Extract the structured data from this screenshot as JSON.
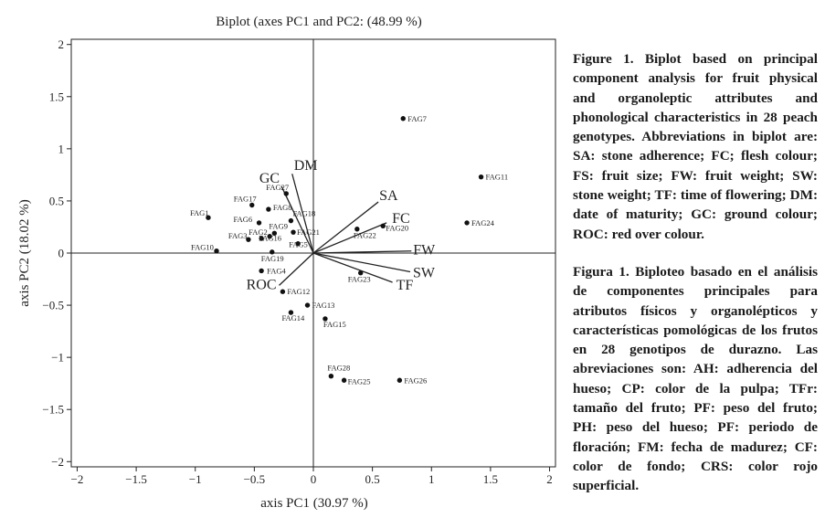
{
  "chart_data": {
    "type": "scatter",
    "title": "Biplot (axes PC1 and PC2: (48.99 %)",
    "xlabel": "axis PC1 (30.97 %)",
    "ylabel": "axis PC2 (18.02 %)",
    "xlim": [
      -2.05,
      2.05
    ],
    "ylim": [
      -2.05,
      2.05
    ],
    "xticks": [
      -2,
      -1.5,
      -1,
      -0.5,
      0,
      0.5,
      1,
      1.5,
      2
    ],
    "yticks": [
      -2,
      -1.5,
      -1,
      -0.5,
      0,
      0.5,
      1,
      1.5,
      2
    ],
    "xtick_labels": [
      "−2",
      "−1.5",
      "−1",
      "−0.5",
      "0",
      "0.5",
      "1",
      "1.5",
      "2"
    ],
    "ytick_labels": [
      "−2",
      "−1.5",
      "−1",
      "−0.5",
      "0",
      "0.5",
      "1",
      "1.5",
      "2"
    ],
    "grid": false,
    "points": [
      {
        "label": "FAG1",
        "x": -0.89,
        "y": 0.34
      },
      {
        "label": "FAG2",
        "x": -0.44,
        "y": 0.14
      },
      {
        "label": "FAG3",
        "x": -0.55,
        "y": 0.13
      },
      {
        "label": "FAG4",
        "x": -0.44,
        "y": -0.17
      },
      {
        "label": "FAG5",
        "x": -0.13,
        "y": 0.09
      },
      {
        "label": "FAG6",
        "x": -0.46,
        "y": 0.29
      },
      {
        "label": "FAG7",
        "x": 0.76,
        "y": 1.29
      },
      {
        "label": "FAG8",
        "x": -0.38,
        "y": 0.42
      },
      {
        "label": "FAG9",
        "x": -0.33,
        "y": 0.19
      },
      {
        "label": "FAG10",
        "x": -0.82,
        "y": 0.02
      },
      {
        "label": "FAG11",
        "x": 1.42,
        "y": 0.73
      },
      {
        "label": "FAG12",
        "x": -0.26,
        "y": -0.37
      },
      {
        "label": "FAG13",
        "x": -0.05,
        "y": -0.5
      },
      {
        "label": "FAG14",
        "x": -0.19,
        "y": -0.57
      },
      {
        "label": "FAG15",
        "x": 0.1,
        "y": -0.63
      },
      {
        "label": "FAG16",
        "x": -0.37,
        "y": 0.16
      },
      {
        "label": "FAG17",
        "x": -0.52,
        "y": 0.46
      },
      {
        "label": "FAG18",
        "x": -0.19,
        "y": 0.31
      },
      {
        "label": "FAG19",
        "x": -0.35,
        "y": 0.01
      },
      {
        "label": "FAG20",
        "x": 0.59,
        "y": 0.26
      },
      {
        "label": "FAG21",
        "x": -0.17,
        "y": 0.2
      },
      {
        "label": "FAG22",
        "x": 0.37,
        "y": 0.23
      },
      {
        "label": "FAG23",
        "x": 0.4,
        "y": -0.19
      },
      {
        "label": "FAG24",
        "x": 1.3,
        "y": 0.29
      },
      {
        "label": "FAG25",
        "x": 0.26,
        "y": -1.22
      },
      {
        "label": "FAG26",
        "x": 0.73,
        "y": -1.22
      },
      {
        "label": "FAG27",
        "x": -0.23,
        "y": 0.57
      },
      {
        "label": "FAG28",
        "x": 0.15,
        "y": -1.18
      }
    ],
    "vectors": [
      {
        "label": "DM",
        "x": -0.18,
        "y": 0.76
      },
      {
        "label": "GC",
        "x": -0.27,
        "y": 0.64
      },
      {
        "label": "SA",
        "x": 0.55,
        "y": 0.49
      },
      {
        "label": "FC",
        "x": 0.62,
        "y": 0.29
      },
      {
        "label": "FW",
        "x": 0.83,
        "y": 0.02
      },
      {
        "label": "SW",
        "x": 0.82,
        "y": -0.18
      },
      {
        "label": "TF",
        "x": 0.67,
        "y": -0.28
      },
      {
        "label": "ROC",
        "x": -0.29,
        "y": -0.31
      }
    ]
  },
  "captions": {
    "english": "Figure 1. Biplot based on principal component analysis for fruit physical and organoleptic attributes and phonological characteristics in 28 peach genotypes. Abbreviations in biplot are: SA: stone adherence; FC; flesh colour; FS: fruit size; FW: fruit weight; SW: stone weight; TF: time of flowering; DM: date of maturity; GC: ground colour; ROC: red over colour.",
    "spanish": "Figura 1. Biploteo basado en el análisis de componentes principales para atributos físicos y organolépticos y características pomológicas de los frutos en 28 genotipos de durazno. Las abreviaciones son: AH: adherencia del hueso; CP: color de la pulpa; TFr: tamaño del fruto; PF: peso del fruto; PH: peso del hueso; PF: periodo de floración; FM: fecha de madurez; CF: color de fondo; CRS: color rojo superficial."
  }
}
